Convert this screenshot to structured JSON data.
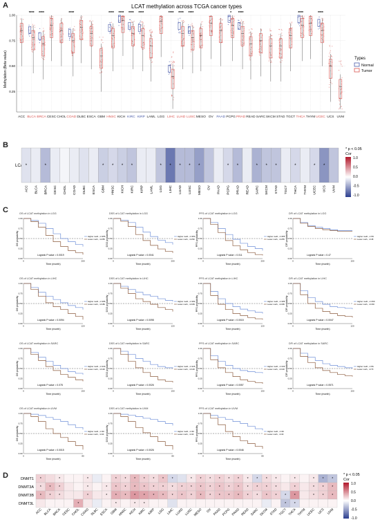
{
  "panelA": {
    "letter": "A",
    "title": "LCAT methylation across TCGA cancer types",
    "ylabel": "Methylation (Beta value)",
    "yticks": [
      "0.25",
      "0.50",
      "0.75",
      "1.00"
    ],
    "legend_title": "Types",
    "legend_items": [
      {
        "label": "Normal",
        "color": "#4a5ba8"
      },
      {
        "label": "Tumor",
        "color": "#d9534f"
      }
    ],
    "cancers": [
      "ACC",
      "BLCA",
      "BRCA",
      "CESC",
      "CHOL",
      "COAD",
      "DLBC",
      "ESCA",
      "GBM",
      "HNSC",
      "KICH",
      "KIRC",
      "KIRP",
      "LAML",
      "LGG",
      "LIHC",
      "LUAD",
      "LUSC",
      "MESO",
      "OV",
      "PAAD",
      "PCPG",
      "PRAD",
      "READ",
      "SARC",
      "SKCM",
      "STAD",
      "TGCT",
      "THCA",
      "THYM",
      "UCEC",
      "UCS",
      "UVM"
    ],
    "label_colors": [
      "#222",
      "#d9534f",
      "#d9534f",
      "#222",
      "#222",
      "#d9534f",
      "#222",
      "#222",
      "#222",
      "#d9534f",
      "#222",
      "#4a5ba8",
      "#4a5ba8",
      "#222",
      "#222",
      "#d9534f",
      "#d9534f",
      "#d9534f",
      "#222",
      "#222",
      "#4a5ba8",
      "#222",
      "#d9534f",
      "#222",
      "#222",
      "#222",
      "#222",
      "#222",
      "#d9534f",
      "#222",
      "#d9534f",
      "#222",
      "#222"
    ],
    "sig": [
      "",
      "****",
      "****",
      "",
      "",
      "****",
      "",
      "",
      "",
      "****",
      "****",
      "****",
      "****",
      "",
      "",
      "****",
      "****",
      "****",
      "",
      "",
      "",
      "*",
      "****",
      "",
      "",
      "",
      "",
      "",
      "****",
      "",
      "****",
      "",
      ""
    ]
  },
  "panelB": {
    "letter": "B",
    "row_label": "LCAT",
    "legend_title": "Cor",
    "legend_note": "* p < 0.05",
    "legend_ticks": [
      "1.0",
      "0.5",
      "0.0",
      "-0.5",
      "-1.0"
    ],
    "cancers": [
      "ACC",
      "BLCA",
      "BRCA",
      "CESC",
      "CHOL",
      "COAD",
      "DLBC",
      "ESCA",
      "GBM",
      "HNSC",
      "KICH",
      "KIRC",
      "KIRP",
      "LAML",
      "LGG",
      "LIHC",
      "LUAD",
      "LUSC",
      "MESO",
      "OV",
      "PAAD",
      "PCPG",
      "PRAD",
      "READ",
      "SARC",
      "SKCM",
      "STAD",
      "TGCT",
      "THCA",
      "THYM",
      "UCEC",
      "UCS",
      "UVM"
    ],
    "cor": [
      -0.15,
      -0.1,
      -0.35,
      -0.1,
      -0.05,
      -0.1,
      -0.15,
      -0.1,
      -0.25,
      -0.2,
      -0.25,
      -0.3,
      -0.1,
      -0.1,
      -0.3,
      -0.7,
      -0.35,
      -0.35,
      -0.5,
      -0.3,
      -0.1,
      -0.2,
      -0.35,
      -0.1,
      -0.4,
      -0.3,
      -0.3,
      -0.1,
      -0.2,
      -0.1,
      -0.2,
      -0.55,
      -0.3
    ],
    "stars": [
      "*",
      "",
      "*",
      "",
      "",
      "",
      "",
      "",
      "*",
      "*",
      "*",
      "*",
      "",
      "",
      "*",
      "*",
      "*",
      "*",
      "*",
      "",
      "",
      "*",
      "*",
      "",
      "*",
      "*",
      "*",
      "",
      "*",
      "",
      "*",
      "*",
      ""
    ]
  },
  "panelC": {
    "letter": "C",
    "rows": [
      {
        "cancer": "LGG",
        "plots": [
          {
            "title": "OS of LCAT methylation in LGG",
            "ylabel": "OS probability",
            "p": "Logrank P value = 0.0019",
            "legend": [
              "Higher meth., n=255",
              "Lower meth., n=255"
            ],
            "hi": [
              1,
              0.95,
              0.88,
              0.75,
              0.62,
              0.5,
              0.42,
              0.35,
              0.3
            ],
            "lo": [
              1,
              0.92,
              0.78,
              0.58,
              0.42,
              0.3,
              0.2,
              0.15,
              0.1
            ],
            "xmax": "200"
          },
          {
            "title": "DSS of LCAT methylation in LGG",
            "ylabel": "DSS probability",
            "p": "Logrank P value = 0.0041",
            "legend": [
              "Higher meth., n=250",
              "Lower meth., n=252"
            ],
            "hi": [
              1,
              0.96,
              0.9,
              0.78,
              0.66,
              0.55,
              0.46,
              0.4,
              0.35
            ],
            "lo": [
              1,
              0.93,
              0.8,
              0.6,
              0.45,
              0.33,
              0.24,
              0.18,
              0.14
            ],
            "xmax": "200"
          },
          {
            "title": "PFS of LCAT methylation in LGG",
            "ylabel": "PFS probability",
            "p": "Logrank P value = 0.011",
            "legend": [
              "Higher meth., n=255",
              "Lower meth., n=255"
            ],
            "hi": [
              1,
              0.9,
              0.75,
              0.6,
              0.48,
              0.38,
              0.3,
              0.25,
              0.2
            ],
            "lo": [
              1,
              0.85,
              0.65,
              0.45,
              0.32,
              0.22,
              0.15,
              0.1,
              0.08
            ],
            "xmax": "200"
          },
          {
            "title": "DFI of LCAT methylation in LGG",
            "ylabel": "DFI probability",
            "p": "Logrank P value = 0.47",
            "legend": [
              "Higher meth., n=53",
              "Lower meth., n=48"
            ],
            "hi": [
              1,
              0.9,
              0.82,
              0.78,
              0.75,
              0.72,
              0.7,
              0.7,
              0.7
            ],
            "lo": [
              1,
              0.88,
              0.8,
              0.75,
              0.72,
              0.7,
              0.68,
              0.68,
              0.68
            ],
            "xmax": "150"
          }
        ]
      },
      {
        "cancer": "LIHC",
        "plots": [
          {
            "title": "OS of LCAT methylation in LIHC",
            "ylabel": "OS probability",
            "p": "Logrank P value = 0.0094",
            "legend": [
              "Higher meth., n=186",
              "Lower meth., n=186"
            ],
            "hi": [
              1,
              0.9,
              0.78,
              0.68,
              0.6,
              0.52,
              0.45,
              0.4,
              0.35
            ],
            "lo": [
              1,
              0.85,
              0.68,
              0.52,
              0.42,
              0.35,
              0.25,
              0.18,
              0.1
            ],
            "xmax": "120"
          },
          {
            "title": "DSS of LCAT methylation in LIHC",
            "ylabel": "DSS probability",
            "p": "Logrank P value = 0.0098",
            "legend": [
              "Higher meth., n=182",
              "Lower meth., n=183"
            ],
            "hi": [
              1,
              0.93,
              0.85,
              0.78,
              0.72,
              0.68,
              0.62,
              0.58,
              0.55
            ],
            "lo": [
              1,
              0.88,
              0.75,
              0.62,
              0.55,
              0.48,
              0.4,
              0.35,
              0.3
            ],
            "xmax": "120"
          },
          {
            "title": "PFS of LCAT methylation in LIHC",
            "ylabel": "PFS probability",
            "p": "Logrank P value = 0.0015",
            "legend": [
              "Higher meth., n=186",
              "Lower meth., n=186"
            ],
            "hi": [
              1,
              0.8,
              0.62,
              0.5,
              0.42,
              0.36,
              0.32,
              0.28,
              0.25
            ],
            "lo": [
              1,
              0.7,
              0.48,
              0.35,
              0.25,
              0.2,
              0.15,
              0.12,
              0.1
            ],
            "xmax": "120"
          },
          {
            "title": "DFI of LCAT methylation in LIHC",
            "ylabel": "DFI probability",
            "p": "Logrank P value = 0.0047",
            "legend": [
              "Higher meth., n=159",
              "Lower meth., n=160"
            ],
            "hi": [
              1,
              0.82,
              0.65,
              0.55,
              0.48,
              0.42,
              0.4,
              0.38,
              0.36
            ],
            "lo": [
              1,
              0.72,
              0.5,
              0.38,
              0.3,
              0.25,
              0.2,
              0.18,
              0.15
            ],
            "xmax": "120"
          }
        ]
      },
      {
        "cancer": "SARC",
        "plots": [
          {
            "title": "OS of LCAT methylation in SARC",
            "ylabel": "OS probability",
            "p": "Logrank P value = 0.078",
            "legend": [
              "Higher meth., n=130",
              "Lower meth., n=130"
            ],
            "hi": [
              1,
              0.9,
              0.78,
              0.68,
              0.58,
              0.5,
              0.42,
              0.38,
              0.35
            ],
            "lo": [
              1,
              0.85,
              0.7,
              0.55,
              0.45,
              0.35,
              0.28,
              0.22,
              0.18
            ],
            "xmax": "150"
          },
          {
            "title": "DSS of LCAT methylation in SARC",
            "ylabel": "DSS probability",
            "p": "Logrank P value = 0.0026",
            "legend": [
              "Higher meth., n=126",
              "Lower meth., n=126"
            ],
            "hi": [
              1,
              0.93,
              0.85,
              0.75,
              0.68,
              0.6,
              0.55,
              0.52,
              0.5
            ],
            "lo": [
              1,
              0.85,
              0.68,
              0.52,
              0.4,
              0.3,
              0.22,
              0.18,
              0.15
            ],
            "xmax": "150"
          },
          {
            "title": "PFS of LCAT methylation in SARC",
            "ylabel": "PFS probability",
            "p": "Logrank P value = 0.0057",
            "legend": [
              "Higher meth., n=130",
              "Lower meth., n=130"
            ],
            "hi": [
              1,
              0.82,
              0.68,
              0.58,
              0.5,
              0.45,
              0.42,
              0.4,
              0.38
            ],
            "lo": [
              1,
              0.72,
              0.52,
              0.4,
              0.3,
              0.22,
              0.18,
              0.15,
              0.12
            ],
            "xmax": "150"
          },
          {
            "title": "DFI of LCAT methylation in SARC",
            "ylabel": "DFI probability",
            "p": "Logrank P value = 0.0571",
            "legend": [
              "Higher meth., n=81",
              "Lower meth., n=79"
            ],
            "hi": [
              1,
              0.88,
              0.78,
              0.7,
              0.62,
              0.58,
              0.55,
              0.52,
              0.5
            ],
            "lo": [
              1,
              0.8,
              0.65,
              0.52,
              0.45,
              0.4,
              0.35,
              0.32,
              0.3
            ],
            "xmax": "150"
          }
        ]
      },
      {
        "cancer": "UVM",
        "plots": [
          {
            "title": "OS of LCAT methylation in UVM",
            "ylabel": "OS probability",
            "p": "Logrank P value = 0.0015",
            "legend": [
              "Higher meth., n=40",
              "Lower meth., n=40"
            ],
            "hi": [
              1,
              0.98,
              0.95,
              0.9,
              0.85,
              0.8,
              0.72,
              0.65,
              0.6
            ],
            "lo": [
              1,
              0.92,
              0.8,
              0.62,
              0.5,
              0.4,
              0.3,
              0.2,
              0.1
            ],
            "xmax": "80"
          },
          {
            "title": "DSS of LCAT methylation in UVM",
            "ylabel": "DSS probability",
            "p": "Logrank P value = 0.0026",
            "legend": [
              "Higher meth., n=40",
              "Lower meth., n=40"
            ],
            "hi": [
              1,
              0.98,
              0.96,
              0.92,
              0.88,
              0.85,
              0.8,
              0.75,
              0.7
            ],
            "lo": [
              1,
              0.92,
              0.8,
              0.65,
              0.52,
              0.42,
              0.3,
              0.2,
              0.1
            ],
            "xmax": "80"
          },
          {
            "title": "PFS of LCAT methylation in UVM",
            "ylabel": "PFS probability",
            "p": "Logrank P value = 0.0046",
            "legend": [
              "Higher meth., n=40",
              "Lower meth., n=40"
            ],
            "hi": [
              1,
              0.95,
              0.9,
              0.85,
              0.8,
              0.75,
              0.68,
              0.62,
              0.58
            ],
            "lo": [
              1,
              0.88,
              0.72,
              0.55,
              0.42,
              0.32,
              0.25,
              0.18,
              0.12
            ],
            "xmax": "80"
          }
        ]
      }
    ],
    "xlabel": "Time (month)"
  },
  "panelD": {
    "letter": "D",
    "rows": [
      "DNMT1",
      "DNMT3A",
      "DNMT3B",
      "DNMT3L"
    ],
    "legend_title": "Cor",
    "legend_note": "* p < 0.05",
    "legend_ticks": [
      "1.0",
      "0.5",
      "0.0",
      "-0.5",
      "-1.0"
    ],
    "cancers": [
      "ACC",
      "BLCA",
      "BRCA",
      "CESC",
      "CHOL",
      "COAD",
      "DLBC",
      "ESCA",
      "GBM",
      "HNSC",
      "KICH",
      "KIRC",
      "KIRP",
      "LGG",
      "LIHC",
      "LUAD",
      "LUSC",
      "MESO",
      "OV",
      "PAAD",
      "PCPG",
      "PRAD",
      "READ",
      "SARC",
      "SKCM",
      "STAD",
      "TGCT",
      "THCA",
      "THYM",
      "UCEC",
      "UCS",
      "UVM"
    ],
    "cor": [
      [
        0.2,
        0.15,
        0.1,
        0.05,
        0.05,
        0.1,
        -0.1,
        0.05,
        0.2,
        0.15,
        0.3,
        0.2,
        0.15,
        0.25,
        -0.2,
        -0.15,
        0.1,
        0.2,
        0.15,
        0.2,
        0.15,
        0.2,
        0.1,
        -0.2,
        0.15,
        0.1,
        0.05,
        0.1,
        0.05,
        0.1,
        -0.4,
        -0.3
      ],
      [
        0.15,
        0.3,
        0.2,
        0.1,
        0.05,
        0.1,
        0.05,
        0.1,
        0.25,
        0.2,
        0.3,
        0.25,
        0.2,
        0.2,
        0.15,
        0.2,
        0.2,
        0.25,
        0.2,
        0.25,
        0.2,
        0.25,
        0.15,
        0.2,
        0.2,
        0.15,
        0.1,
        0.2,
        0.1,
        0.15,
        0.2,
        0.3
      ],
      [
        0.3,
        0.2,
        0.15,
        0.1,
        0.1,
        0.2,
        0.1,
        0.1,
        0.35,
        0.3,
        0.45,
        0.4,
        0.35,
        0.3,
        0.2,
        0.25,
        0.2,
        0.3,
        0.2,
        0.25,
        0.25,
        0.3,
        0.2,
        0.15,
        0.25,
        0.2,
        -0.2,
        0.45,
        0.1,
        0.15,
        0.2,
        0.3
      ],
      [
        0.1,
        0.05,
        0.05,
        0.05,
        0.35,
        0.1,
        -0.1,
        0.05,
        0.1,
        0.05,
        0.1,
        0.1,
        0.05,
        0.05,
        -0.15,
        0.05,
        0.05,
        0.05,
        0.05,
        0.05,
        0.05,
        0.05,
        0.05,
        0.05,
        -0.1,
        0.05,
        -0.3,
        -0.2,
        0.05,
        0.05,
        0.05,
        0.05
      ]
    ],
    "stars": [
      [
        "*",
        "",
        "*",
        "",
        "",
        "*",
        "",
        "",
        "*",
        "*",
        "*",
        "*",
        "*",
        "*",
        "*",
        "",
        "*",
        "*",
        "*",
        "*",
        "*",
        "*",
        "*",
        "*",
        "*",
        "*",
        "",
        "*",
        "",
        "*",
        "*",
        "*"
      ],
      [
        "*",
        "*",
        "*",
        "",
        "",
        "*",
        "",
        "*",
        "*",
        "*",
        "*",
        "*",
        "*",
        "*",
        "*",
        "*",
        "*",
        "*",
        "*",
        "*",
        "*",
        "*",
        "*",
        "*",
        "*",
        "*",
        "",
        "*",
        "",
        "*",
        "*",
        "*"
      ],
      [
        "*",
        "*",
        "*",
        "",
        "",
        "*",
        "",
        "*",
        "*",
        "*",
        "*",
        "*",
        "*",
        "*",
        "*",
        "*",
        "*",
        "*",
        "*",
        "*",
        "*",
        "*",
        "*",
        "*",
        "*",
        "*",
        "*",
        "*",
        "",
        "*",
        "*",
        "*"
      ],
      [
        "",
        "",
        "",
        "",
        "*",
        "",
        "",
        "",
        "*",
        "",
        "*",
        "*",
        "",
        "",
        "",
        "",
        "",
        "",
        "",
        "",
        "",
        "",
        "",
        "",
        "",
        "",
        "*",
        "*",
        "",
        "",
        "",
        ""
      ]
    ]
  },
  "colors": {
    "normal": "#4a5ba8",
    "tumor": "#d9534f",
    "hi_line": "#6f8fd8",
    "lo_line": "#8b5a3c"
  }
}
